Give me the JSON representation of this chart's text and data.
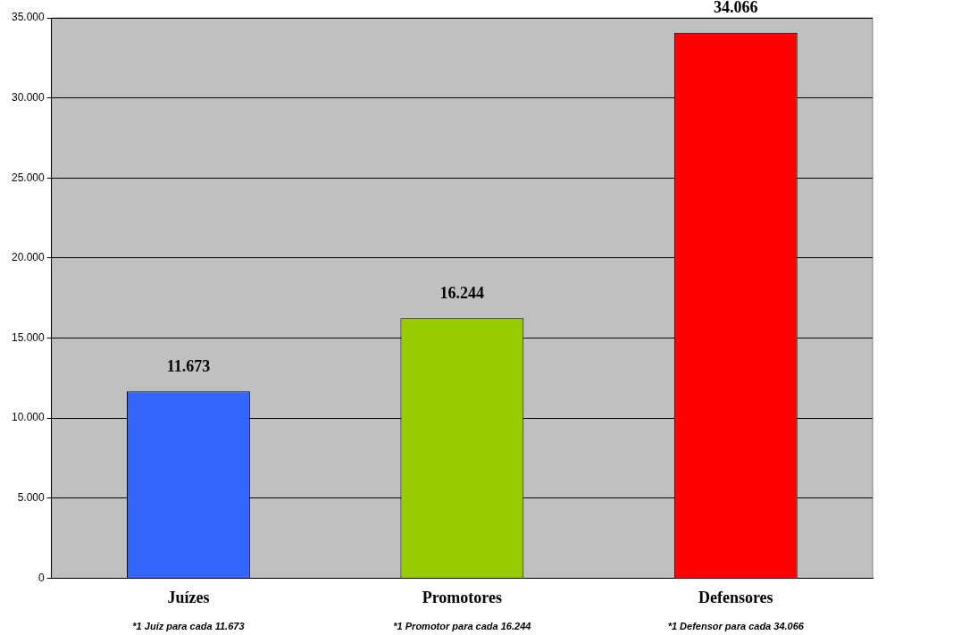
{
  "chart_data": {
    "type": "bar",
    "categories": [
      "Juízes",
      "Promotores",
      "Defensores"
    ],
    "values": [
      11673,
      16244,
      34066
    ],
    "colors": [
      "#3366ff",
      "#99cc00",
      "#ff0000"
    ],
    "value_labels": [
      "11.673",
      "16.244",
      "34.066"
    ],
    "ylim": [
      0,
      35000
    ],
    "yticks": [
      0,
      {
        "value": 5000,
        "label": "5.000"
      },
      {
        "value": 10000,
        "label": "10.000"
      },
      {
        "value": 15000,
        "label": "15.000"
      },
      {
        "value": 20000,
        "label": "20.000"
      },
      {
        "value": 25000,
        "label": "25.000"
      },
      {
        "value": 30000,
        "label": "30.000"
      },
      {
        "value": 35000,
        "label": "35.000"
      }
    ],
    "grid": "y",
    "legend": false,
    "annotations": [
      "*1 Juíz para cada 11.673",
      "*1 Promotor para cada 16.244",
      "*1 Defensor para cada 34.066"
    ]
  }
}
